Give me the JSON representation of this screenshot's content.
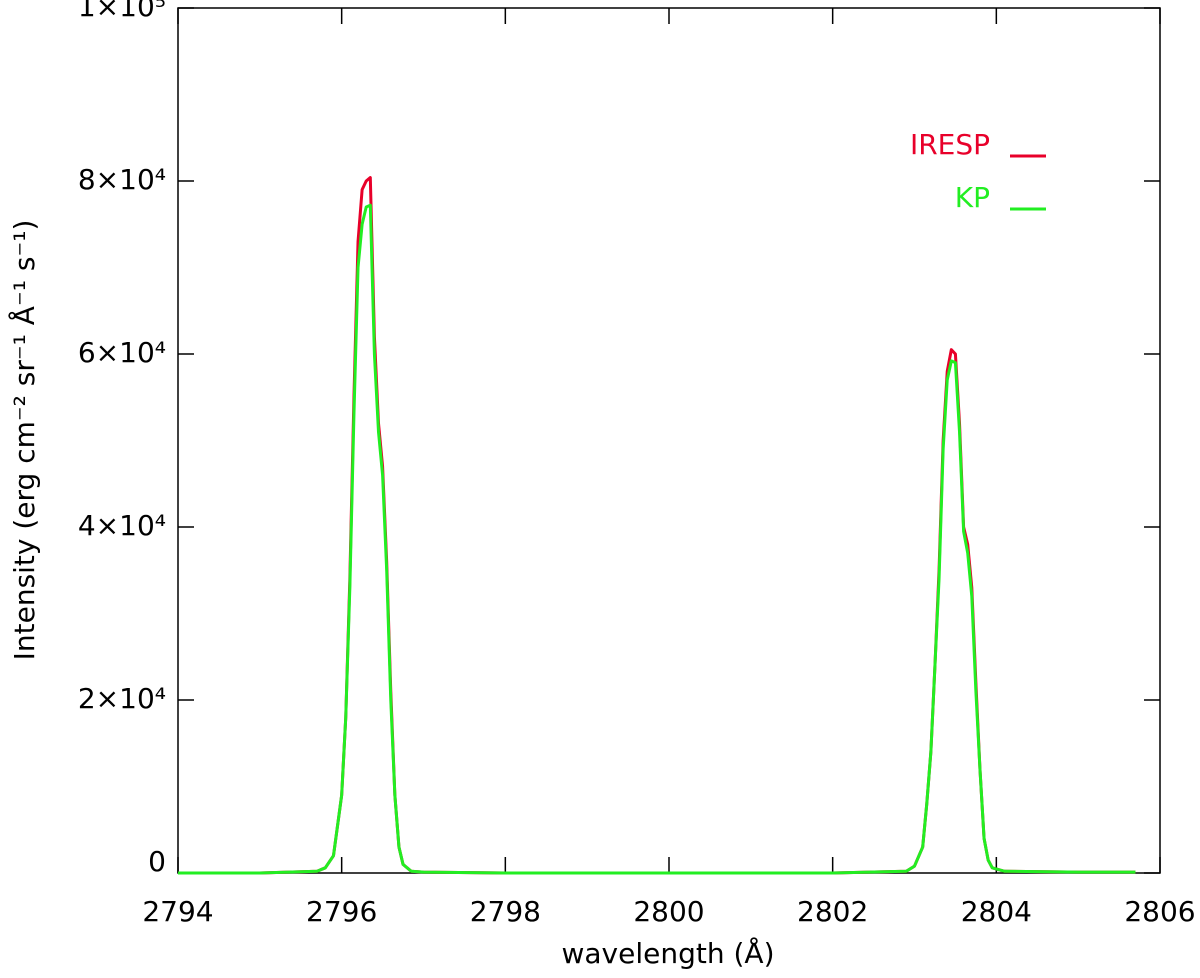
{
  "chart_data": {
    "type": "line",
    "xlabel": "wavelength (Å)",
    "ylabel": "Intensity (erg cm⁻² sr⁻¹ Å⁻¹ s⁻¹)",
    "x": [
      2794.0,
      2795.0,
      2795.7,
      2795.8,
      2795.9,
      2796.0,
      2796.05,
      2796.1,
      2796.15,
      2796.2,
      2796.25,
      2796.3,
      2796.35,
      2796.4,
      2796.45,
      2796.5,
      2796.55,
      2796.6,
      2796.65,
      2796.7,
      2796.75,
      2796.85,
      2797.0,
      2798.0,
      2800.0,
      2802.0,
      2802.9,
      2803.0,
      2803.1,
      2803.15,
      2803.2,
      2803.25,
      2803.3,
      2803.35,
      2803.4,
      2803.45,
      2803.5,
      2803.55,
      2803.6,
      2803.65,
      2803.7,
      2803.75,
      2803.8,
      2803.85,
      2803.9,
      2803.95,
      2804.1,
      2805.0,
      2805.7
    ],
    "series": [
      {
        "name": "IRESP",
        "color": "#e8002a",
        "values": [
          0,
          0,
          200,
          600,
          2000,
          9000,
          18000,
          34000,
          55000,
          73000,
          79000,
          80000,
          80400,
          62000,
          52000,
          47000,
          36000,
          21000,
          9000,
          3000,
          1000,
          200,
          100,
          0,
          0,
          0,
          200,
          800,
          3000,
          8000,
          14000,
          24000,
          35000,
          50000,
          58000,
          60500,
          60000,
          52000,
          40000,
          38000,
          33000,
          22000,
          12000,
          4000,
          1500,
          600,
          200,
          100,
          100
        ]
      },
      {
        "name": "KP",
        "color": "#22ee22",
        "values": [
          0,
          0,
          200,
          600,
          2000,
          9000,
          18000,
          33000,
          53000,
          70000,
          75000,
          77000,
          77200,
          60000,
          51000,
          46000,
          35000,
          20000,
          9000,
          3000,
          1000,
          200,
          100,
          0,
          0,
          0,
          200,
          800,
          3000,
          8000,
          14000,
          24000,
          34000,
          49000,
          57000,
          59200,
          59000,
          51000,
          39500,
          37000,
          32000,
          21000,
          12000,
          4000,
          1500,
          600,
          200,
          100,
          100
        ]
      }
    ],
    "xlim": [
      2794,
      2806
    ],
    "ylim": [
      0,
      100000
    ],
    "xticks": [
      2794,
      2796,
      2798,
      2800,
      2802,
      2804,
      2806
    ],
    "yticks": [
      0,
      {
        "value": 20000,
        "label": "2×10⁴"
      },
      {
        "value": 40000,
        "label": "4×10⁴"
      },
      {
        "value": 60000,
        "label": "6×10⁴"
      },
      {
        "value": 80000,
        "label": "8×10⁴"
      },
      {
        "value": 100000,
        "label": "1×10⁵"
      }
    ],
    "legend": "upper right"
  }
}
